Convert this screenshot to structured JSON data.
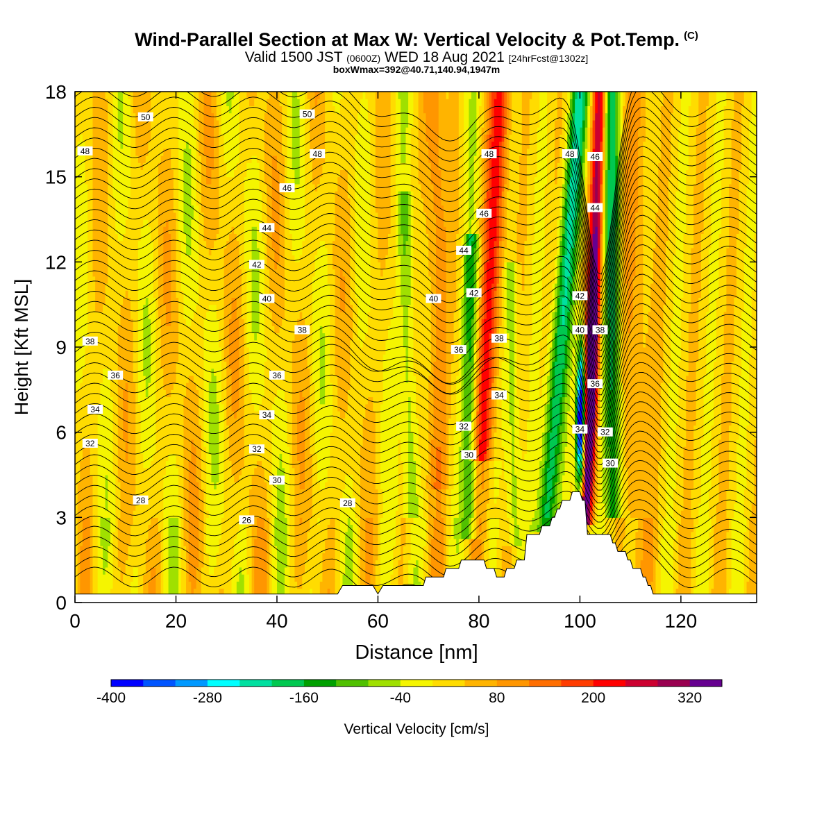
{
  "title": {
    "main": "Wind-Parallel Section at Max W: Vertical Velocity & Pot.Temp.",
    "copyright": "(C)",
    "valid_prefix": "Valid 1500 JST",
    "valid_zulu": "(0600Z)",
    "valid_date": "WED 18 Aug 2021",
    "forecast": "[24hrFcst@1302z]",
    "box_info": "boxWmax=392@40.71,140.94,1947m"
  },
  "chart_data": {
    "type": "heatmap",
    "xlabel": "Distance [nm]",
    "ylabel": "Height [Kft MSL]",
    "xlim": [
      0,
      135
    ],
    "ylim": [
      0,
      18
    ],
    "x_ticks": [
      0,
      20,
      40,
      60,
      80,
      100,
      120
    ],
    "y_ticks": [
      0,
      3,
      6,
      9,
      12,
      15,
      18
    ],
    "colorbar": {
      "label": "Vertical Velocity [cm/s]",
      "range": [
        -400,
        360
      ],
      "step": 40,
      "tick_labels": [
        -400,
        -280,
        -160,
        -40,
        80,
        200,
        320
      ],
      "colors": [
        "#0000ff",
        "#0055ff",
        "#0099ff",
        "#00ffff",
        "#00e0a0",
        "#00c850",
        "#00a000",
        "#50c000",
        "#a0e000",
        "#f5f500",
        "#ffdc00",
        "#ffb400",
        "#ff9600",
        "#ff6e00",
        "#ff3c00",
        "#ff0000",
        "#cc0030",
        "#990050",
        "#660090"
      ]
    },
    "theta_contour_labels": [
      26,
      28,
      30,
      32,
      34,
      36,
      38,
      40,
      42,
      44,
      46,
      48,
      50
    ],
    "terrain_profile": [
      [
        0,
        0.3
      ],
      [
        52,
        0.3
      ],
      [
        53,
        0.6
      ],
      [
        59,
        0.6
      ],
      [
        60,
        0.3
      ],
      [
        61,
        0.6
      ],
      [
        69,
        0.6
      ],
      [
        69.5,
        0.9
      ],
      [
        73,
        0.9
      ],
      [
        73.5,
        1.2
      ],
      [
        76,
        1.2
      ],
      [
        76.5,
        1.5
      ],
      [
        81,
        1.5
      ],
      [
        81.5,
        1.2
      ],
      [
        83,
        1.2
      ],
      [
        83.5,
        0.9
      ],
      [
        85,
        0.9
      ],
      [
        85.5,
        1.2
      ],
      [
        87,
        1.2
      ],
      [
        87.5,
        1.5
      ],
      [
        89,
        1.5
      ],
      [
        89.5,
        2.4
      ],
      [
        92,
        2.4
      ],
      [
        92.5,
        2.7
      ],
      [
        94,
        2.7
      ],
      [
        94.5,
        3.0
      ],
      [
        95,
        3.0
      ],
      [
        95.5,
        3.3
      ],
      [
        96,
        3.3
      ],
      [
        96.5,
        3.6
      ],
      [
        98,
        3.6
      ],
      [
        98.5,
        3.9
      ],
      [
        100,
        3.9
      ],
      [
        100.5,
        3.6
      ],
      [
        101,
        3.6
      ],
      [
        101.5,
        2.4
      ],
      [
        106,
        2.4
      ],
      [
        106.5,
        2.1
      ],
      [
        107,
        2.1
      ],
      [
        107.5,
        1.8
      ],
      [
        109,
        1.8
      ],
      [
        109.5,
        1.5
      ],
      [
        110,
        1.5
      ],
      [
        110.5,
        1.2
      ],
      [
        112,
        1.2
      ],
      [
        112.5,
        0.9
      ],
      [
        113,
        0.9
      ],
      [
        113.5,
        0.6
      ],
      [
        114,
        0.6
      ],
      [
        114.5,
        0.3
      ],
      [
        135,
        0.3
      ]
    ]
  }
}
